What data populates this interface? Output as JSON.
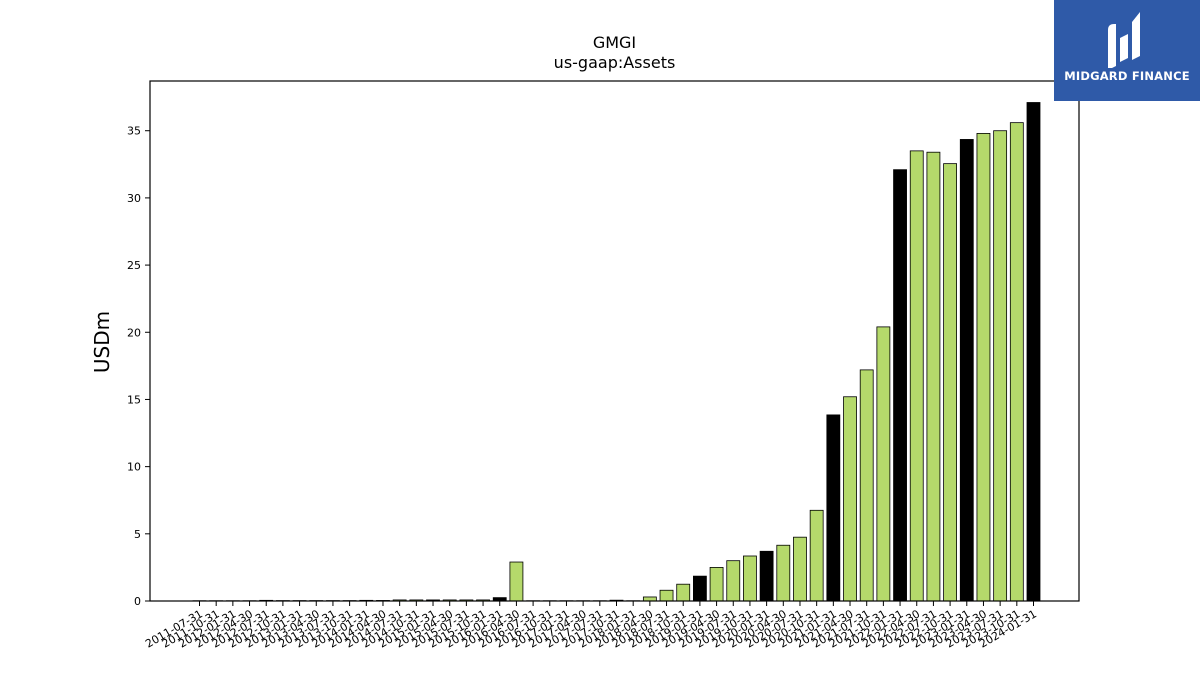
{
  "chart_data": {
    "type": "bar",
    "title": "GMGI",
    "subtitle": "us-gaap:Assets",
    "xlabel": "",
    "ylabel": "USDm",
    "ylim": [
      0,
      38.7
    ],
    "yticks": [
      0,
      5,
      10,
      15,
      20,
      25,
      30,
      35
    ],
    "grid": false,
    "colors": {
      "quarterly": "#b5d96b",
      "annual": "#000000"
    },
    "categories": [
      "2011-07-31",
      "2011-10-31",
      "2012-01-31",
      "2012-04-30",
      "2012-07-31",
      "2012-10-31",
      "2013-01-31",
      "2013-04-30",
      "2013-07-31",
      "2013-10-31",
      "2014-01-31",
      "2014-04-30",
      "2014-07-31",
      "2014-10-31",
      "2015-01-31",
      "2015-04-30",
      "2015-07-31",
      "2015-10-31",
      "2016-01-31",
      "2016-04-30",
      "2016-07-31",
      "2016-10-31",
      "2017-01-31",
      "2017-04-30",
      "2017-07-31",
      "2017-10-31",
      "2018-01-31",
      "2018-04-30",
      "2018-07-31",
      "2018-10-31",
      "2019-01-31",
      "2019-04-30",
      "2019-07-31",
      "2019-10-31",
      "2020-01-31",
      "2020-04-30",
      "2020-07-31",
      "2020-10-31",
      "2021-01-31",
      "2021-04-30",
      "2021-07-31",
      "2021-10-31",
      "2022-01-31",
      "2022-04-30",
      "2022-07-31",
      "2022-10-31",
      "2023-01-31",
      "2023-04-30",
      "2023-07-31",
      "2023-10-31",
      "2024-01-31"
    ],
    "values": [
      0.02,
      0.02,
      0.02,
      0.02,
      0.05,
      0.03,
      0.03,
      0.03,
      0.03,
      0.03,
      0.05,
      0.04,
      0.08,
      0.08,
      0.08,
      0.08,
      0.08,
      0.08,
      0.25,
      2.9,
      0.02,
      0.02,
      0.02,
      0.02,
      0.02,
      0.06,
      0.02,
      0.3,
      0.8,
      1.25,
      1.85,
      2.5,
      3.0,
      3.35,
      3.7,
      4.15,
      4.75,
      6.75,
      13.85,
      15.2,
      17.2,
      20.4,
      32.1,
      33.5,
      33.4,
      32.55,
      34.35,
      34.8,
      35.0,
      35.6,
      37.1
    ],
    "annual": [
      false,
      false,
      true,
      false,
      false,
      false,
      true,
      false,
      false,
      false,
      true,
      false,
      false,
      false,
      true,
      false,
      false,
      false,
      true,
      false,
      false,
      false,
      true,
      false,
      false,
      false,
      true,
      false,
      false,
      false,
      true,
      false,
      false,
      false,
      true,
      false,
      false,
      false,
      true,
      false,
      false,
      false,
      true,
      false,
      false,
      false,
      true,
      false,
      false,
      false,
      true
    ]
  },
  "logo": {
    "brand": "MIDGARD FINANCE"
  }
}
